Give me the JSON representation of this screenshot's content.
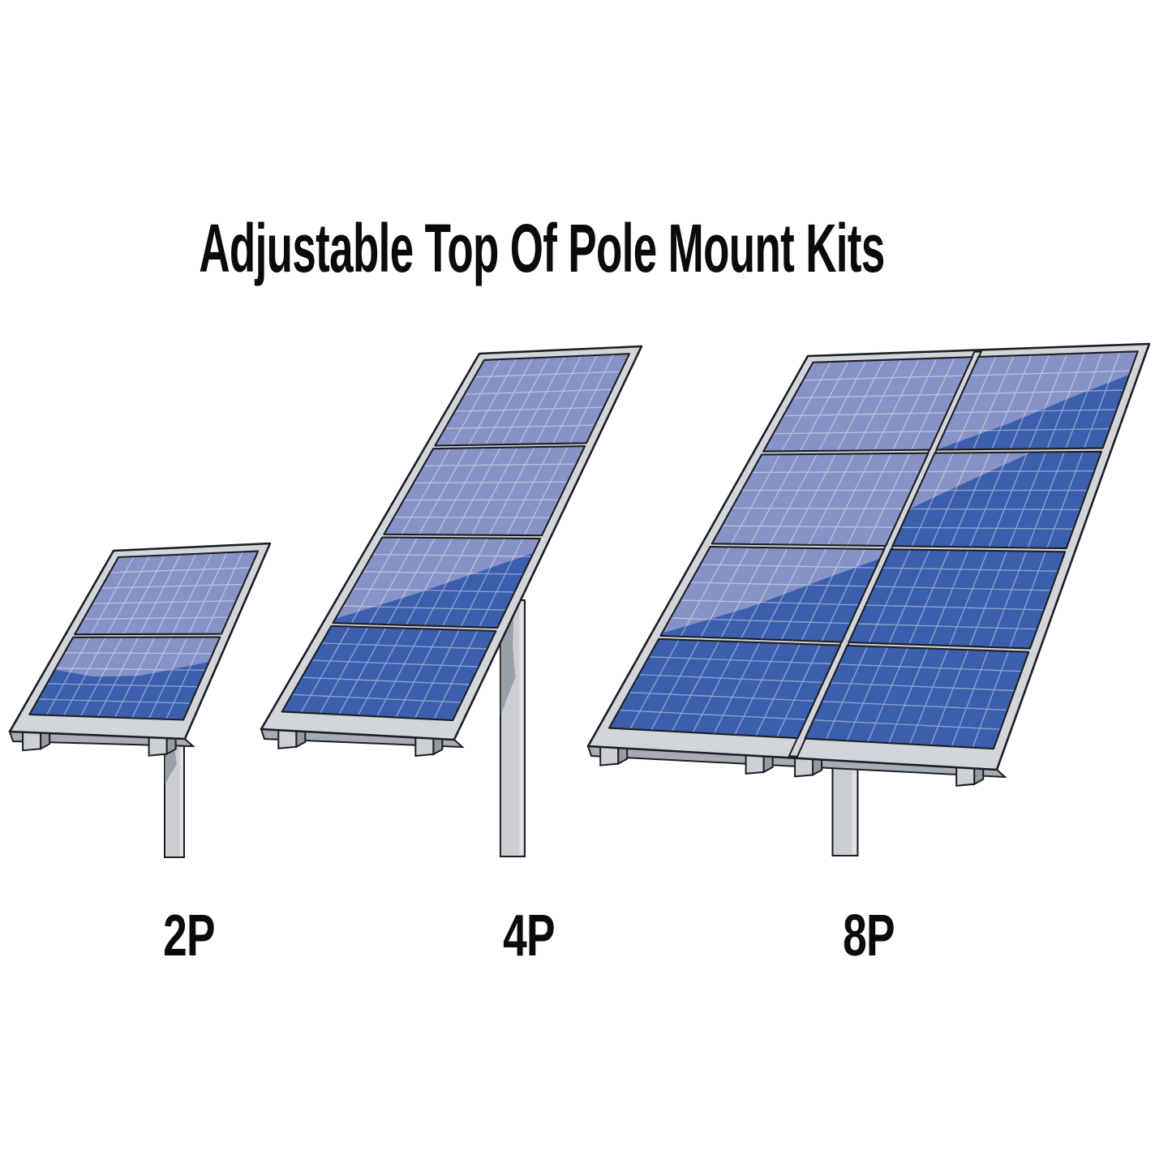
{
  "title": "Adjustable Top Of Pole Mount Kits",
  "kits": [
    {
      "id": "2p",
      "label": "2P",
      "panel_count": 2,
      "rows": 2,
      "cols": 1
    },
    {
      "id": "4p",
      "label": "4P",
      "panel_count": 4,
      "rows": 4,
      "cols": 1
    },
    {
      "id": "8p",
      "label": "8P",
      "panel_count": 8,
      "rows": 4,
      "cols": 2
    }
  ],
  "colors": {
    "background": "#ffffff",
    "panel_light": "#8793c6",
    "panel_dark": "#3b5fad",
    "grid_line": "#ffffff",
    "frame": "#d2d5da",
    "frame_underside": "#a7adb4",
    "outline": "#1d1e22",
    "pole": "#cbced3",
    "pole_shadow": "#9aa0a8",
    "pole_highlight": "#e0e2e6",
    "foot_front": "#cdd0d5",
    "foot_side": "#969ba3",
    "text": "#0b0b0b"
  }
}
